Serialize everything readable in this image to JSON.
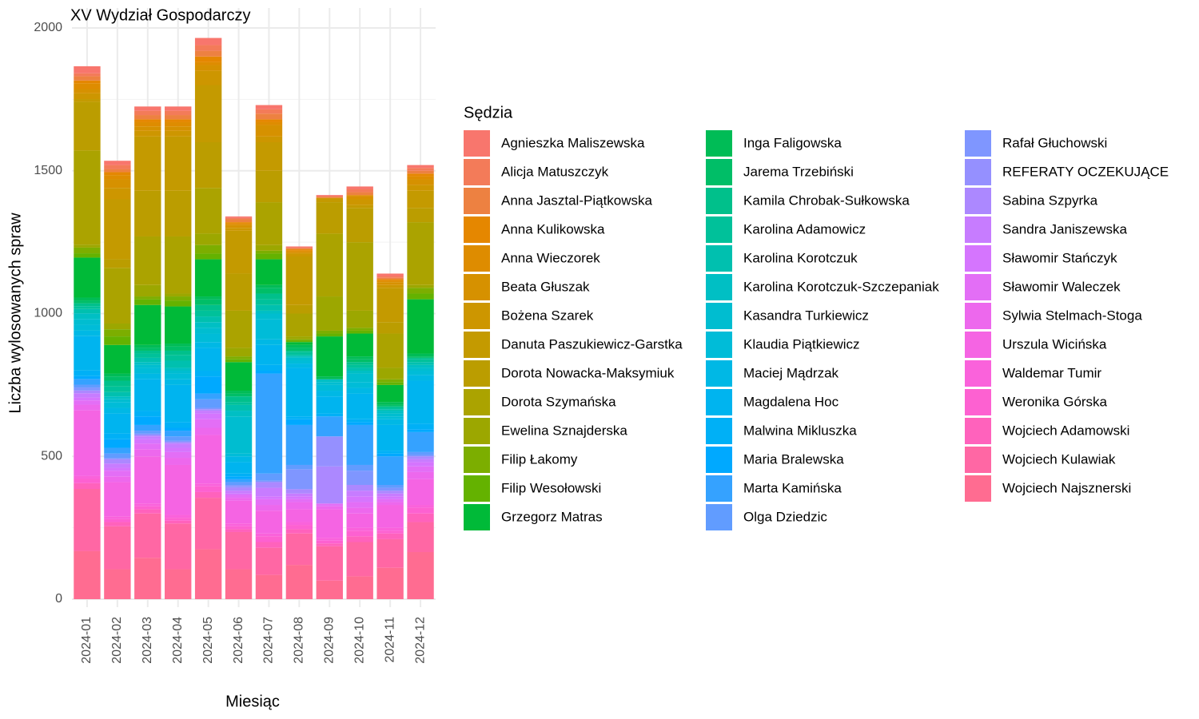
{
  "chart_data": {
    "type": "stacked_bar",
    "title": "XV Wydział Gospodarczy",
    "x_label": "Miesiąc",
    "y_label": "Liczba wylosowanych spraw",
    "legend_title": "Sędzia",
    "legend": "right",
    "grid": true,
    "categories": [
      "2024-01",
      "2024-02",
      "2024-03",
      "2024-04",
      "2024-05",
      "2024-06",
      "2024-07",
      "2024-08",
      "2024-09",
      "2024-10",
      "2024-11",
      "2024-12"
    ],
    "ylim": [
      0,
      2000
    ],
    "yticks": [
      0,
      500,
      1000,
      1500,
      2000
    ],
    "series": [
      {
        "name": "Agnieszka Maliszewska",
        "color": "#F8766D",
        "values": [
          25,
          15,
          15,
          15,
          25,
          5,
          15,
          5,
          5,
          10,
          10,
          10
        ]
      },
      {
        "name": "Alicja Matuszczyk",
        "color": "#F37B59",
        "values": [
          10,
          15,
          15,
          15,
          20,
          5,
          15,
          0,
          0,
          10,
          5,
          10
        ]
      },
      {
        "name": "Anna Jasztal-Piątkowska",
        "color": "#ED8141",
        "values": [
          15,
          10,
          15,
          15,
          20,
          10,
          20,
          5,
          5,
          10,
          5,
          10
        ]
      },
      {
        "name": "Anna Kulikowska",
        "color": "#E58700",
        "values": [
          10,
          10,
          10,
          10,
          20,
          5,
          10,
          5,
          0,
          0,
          5,
          10
        ]
      },
      {
        "name": "Anna Wieczorek",
        "color": "#DE8C00",
        "values": [
          20,
          15,
          15,
          15,
          10,
          5,
          10,
          5,
          0,
          5,
          5,
          10
        ]
      },
      {
        "name": "Beata Głuszak",
        "color": "#D69100",
        "values": [
          15,
          30,
          15,
          15,
          20,
          10,
          40,
          5,
          0,
          10,
          10,
          20
        ]
      },
      {
        "name": "Bożena Szarek",
        "color": "#CD9600",
        "values": [
          20,
          40,
          20,
          20,
          50,
          10,
          20,
          10,
          5,
          20,
          10,
          20
        ]
      },
      {
        "name": "Danuta Paszukiewicz-Garstka",
        "color": "#C49A00",
        "values": [
          10,
          210,
          190,
          190,
          200,
          150,
          100,
          170,
          10,
          10,
          120,
          60
        ]
      },
      {
        "name": "Dorota Nowacka-Maksymiuk",
        "color": "#BB9D00",
        "values": [
          170,
          30,
          160,
          160,
          160,
          130,
          110,
          30,
          110,
          120,
          40,
          50
        ]
      },
      {
        "name": "Dorota Szymańska",
        "color": "#ABA300",
        "values": [
          330,
          195,
          170,
          200,
          160,
          130,
          150,
          80,
          220,
          240,
          120,
          220
        ]
      },
      {
        "name": "Ewelina Sznajderska",
        "color": "#9CA700",
        "values": [
          10,
          20,
          40,
          10,
          40,
          30,
          20,
          10,
          120,
          60,
          40,
          10
        ]
      },
      {
        "name": "Filip Łakomy",
        "color": "#7CAE00",
        "values": [
          20,
          25,
          10,
          15,
          30,
          10,
          10,
          5,
          10,
          10,
          10,
          20
        ]
      },
      {
        "name": "Filip Wesołowski",
        "color": "#64B200",
        "values": [
          15,
          30,
          20,
          20,
          20,
          10,
          20,
          5,
          10,
          10,
          10,
          20
        ]
      },
      {
        "name": "Grzegorz Matras",
        "color": "#00BA38",
        "values": [
          140,
          100,
          140,
          130,
          130,
          100,
          90,
          10,
          140,
          80,
          60,
          190
        ]
      },
      {
        "name": "Inga Faligowska",
        "color": "#00BC56",
        "values": [
          10,
          10,
          10,
          10,
          10,
          10,
          10,
          10,
          10,
          10,
          10,
          10
        ]
      },
      {
        "name": "Jarema Trzebiński",
        "color": "#00BE67",
        "values": [
          10,
          15,
          10,
          15,
          20,
          10,
          20,
          10,
          0,
          10,
          5,
          5
        ]
      },
      {
        "name": "Kamila Chrobak-Sułkowska",
        "color": "#00C08B",
        "values": [
          10,
          20,
          10,
          15,
          20,
          20,
          20,
          5,
          0,
          10,
          5,
          5
        ]
      },
      {
        "name": "Karolina Adamowicz",
        "color": "#00C19A",
        "values": [
          10,
          20,
          15,
          20,
          20,
          10,
          20,
          10,
          0,
          10,
          5,
          10
        ]
      },
      {
        "name": "Karolina Korotczuk",
        "color": "#00C0AF",
        "values": [
          15,
          15,
          15,
          25,
          20,
          20,
          20,
          5,
          0,
          10,
          5,
          10
        ]
      },
      {
        "name": "Karolina Korotczuk-Szczepaniak",
        "color": "#00BFC4",
        "values": [
          20,
          10,
          10,
          10,
          20,
          20,
          10,
          5,
          10,
          10,
          10,
          10
        ]
      },
      {
        "name": "Kasandra Turkiewicz",
        "color": "#00BDD0",
        "values": [
          20,
          10,
          10,
          10,
          20,
          130,
          20,
          10,
          10,
          30,
          10,
          10
        ]
      },
      {
        "name": "Klaudia Piątkiewicz",
        "color": "#00BCD8",
        "values": [
          20,
          20,
          20,
          20,
          30,
          10,
          70,
          10,
          20,
          20,
          10,
          15
        ]
      },
      {
        "name": "Maciej Mądrzak",
        "color": "#00B8E5",
        "values": [
          20,
          20,
          20,
          20,
          20,
          20,
          20,
          15,
          20,
          20,
          20,
          20
        ]
      },
      {
        "name": "Magdalena Hoc",
        "color": "#00B4EF",
        "values": [
          120,
          70,
          110,
          130,
          80,
          40,
          70,
          170,
          60,
          90,
          90,
          150
        ]
      },
      {
        "name": "Malwina Mikluszka",
        "color": "#00B0F6",
        "values": [
          20,
          20,
          20,
          20,
          20,
          10,
          20,
          10,
          10,
          10,
          10,
          20
        ]
      },
      {
        "name": "Maria Bralewska",
        "color": "#00A9FF",
        "values": [
          10,
          30,
          30,
          10,
          60,
          10,
          10,
          20,
          0,
          10,
          10,
          10
        ]
      },
      {
        "name": "Marta Kamińska",
        "color": "#35A2FF",
        "values": [
          20,
          20,
          20,
          20,
          20,
          10,
          350,
          140,
          70,
          140,
          100,
          70
        ]
      },
      {
        "name": "Olga Dziedzic",
        "color": "#619CFF",
        "values": [
          10,
          15,
          10,
          15,
          30,
          10,
          25,
          15,
          0,
          20,
          10,
          10
        ]
      },
      {
        "name": "Rafał Głuchowski",
        "color": "#7F96FF",
        "values": [
          10,
          5,
          5,
          5,
          5,
          5,
          5,
          70,
          0,
          50,
          10,
          5
        ]
      },
      {
        "name": "REFERATY OCZEKUJĄCE",
        "color": "#9590FF",
        "values": [
          0,
          0,
          0,
          0,
          0,
          5,
          0,
          0,
          105,
          0,
          0,
          0
        ]
      },
      {
        "name": "Sabina Szpyrka",
        "color": "#AC88FF",
        "values": [
          10,
          15,
          5,
          5,
          5,
          10,
          20,
          15,
          130,
          20,
          10,
          10
        ]
      },
      {
        "name": "Sandra Janiszewska",
        "color": "#C77CFF",
        "values": [
          15,
          15,
          10,
          15,
          10,
          10,
          30,
          10,
          0,
          20,
          10,
          10
        ]
      },
      {
        "name": "Sławomir Stańczyk",
        "color": "#D575FE",
        "values": [
          10,
          10,
          15,
          15,
          20,
          5,
          10,
          10,
          0,
          20,
          10,
          15
        ]
      },
      {
        "name": "Sławomir Waleczek",
        "color": "#E36EF6",
        "values": [
          15,
          20,
          20,
          20,
          30,
          10,
          20,
          10,
          10,
          20,
          10,
          20
        ]
      },
      {
        "name": "Sylwia Stelmach-Stoga",
        "color": "#ED68ED",
        "values": [
          20,
          20,
          25,
          25,
          25,
          10,
          20,
          25,
          10,
          20,
          10,
          25
        ]
      },
      {
        "name": "Urszula Wicińska",
        "color": "#F564E3",
        "values": [
          230,
          120,
          165,
          175,
          170,
          80,
          80,
          45,
          100,
          50,
          80,
          90
        ]
      },
      {
        "name": "Waldemar Tumir",
        "color": "#FA62DB",
        "values": [
          10,
          10,
          10,
          10,
          10,
          10,
          10,
          10,
          10,
          10,
          10,
          10
        ]
      },
      {
        "name": "Weronika Górska",
        "color": "#FD61D1",
        "values": [
          15,
          10,
          10,
          10,
          20,
          10,
          20,
          15,
          10,
          20,
          10,
          20
        ]
      },
      {
        "name": "Wojciech Adamowski",
        "color": "#FF62BC",
        "values": [
          20,
          15,
          15,
          10,
          20,
          10,
          20,
          15,
          10,
          20,
          20,
          30
        ]
      },
      {
        "name": "Wojciech Kulawiak",
        "color": "#FF67A4",
        "values": [
          218,
          150,
          155,
          160,
          180,
          130,
          95,
          110,
          120,
          120,
          100,
          105
        ]
      },
      {
        "name": "Wojciech Najsznerski",
        "color": "#FF6C91",
        "values": [
          168,
          105,
          145,
          105,
          175,
          105,
          85,
          120,
          65,
          80,
          110,
          165
        ]
      }
    ]
  }
}
